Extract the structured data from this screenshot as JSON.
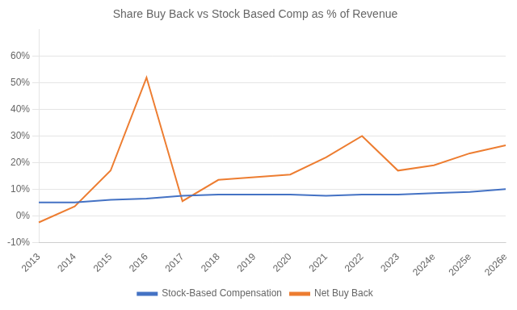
{
  "chart_data": {
    "type": "line",
    "title": "Share Buy Back vs Stock Based Comp as % of Revenue",
    "categories": [
      "2013",
      "2014",
      "2015",
      "2016",
      "2017",
      "2018",
      "2019",
      "2020",
      "2021",
      "2022",
      "2023",
      "2024e",
      "2025e",
      "2026e"
    ],
    "series": [
      {
        "name": "Stock-Based Compensation",
        "color": "#4472C4",
        "values": [
          0.05,
          0.05,
          0.06,
          0.065,
          0.075,
          0.08,
          0.08,
          0.08,
          0.075,
          0.08,
          0.08,
          0.085,
          0.09,
          0.1
        ]
      },
      {
        "name": "Net Buy Back",
        "color": "#ED7D31",
        "values": [
          -0.025,
          0.035,
          0.17,
          0.52,
          0.055,
          0.135,
          0.145,
          0.155,
          0.22,
          0.3,
          0.17,
          0.19,
          0.235,
          0.265
        ]
      }
    ],
    "ylim": [
      -0.1,
      0.7
    ],
    "yticks": [
      {
        "value": -0.1,
        "label": "-10%"
      },
      {
        "value": 0.0,
        "label": "0%"
      },
      {
        "value": 0.1,
        "label": "10%"
      },
      {
        "value": 0.2,
        "label": "20%"
      },
      {
        "value": 0.3,
        "label": "30%"
      },
      {
        "value": 0.4,
        "label": "40%"
      },
      {
        "value": 0.5,
        "label": "50%"
      },
      {
        "value": 0.6,
        "label": "60%"
      }
    ],
    "grid": true,
    "legend": "bottom"
  }
}
